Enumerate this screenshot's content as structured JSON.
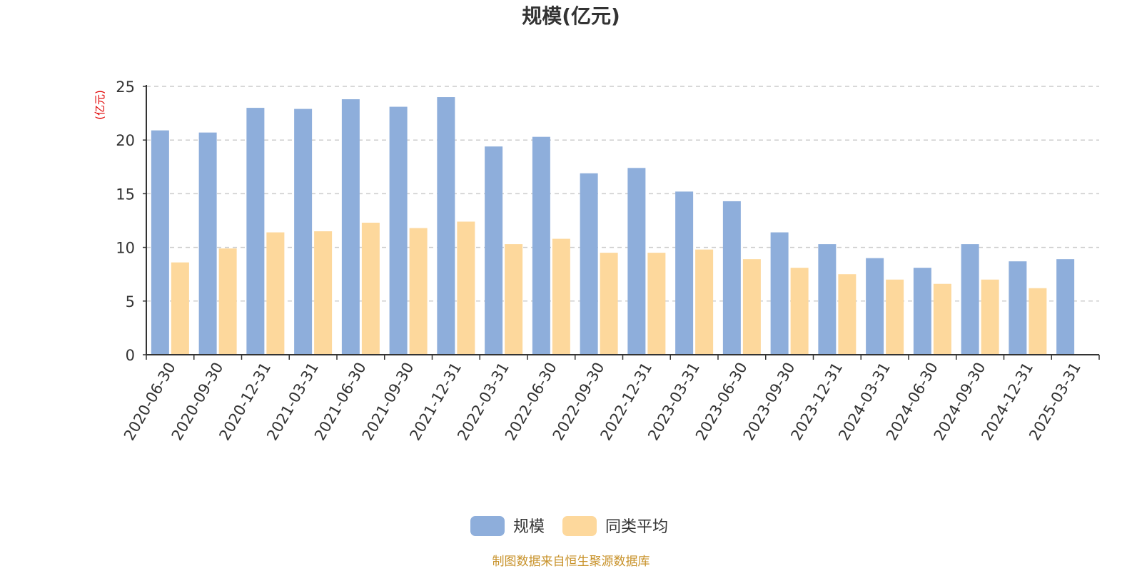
{
  "chart_data": {
    "type": "bar",
    "title": "规模(亿元)",
    "ylabel": "(亿元)",
    "ylim": [
      0,
      25
    ],
    "yticks": [
      "0",
      "5",
      "10",
      "15",
      "20",
      "25"
    ],
    "grid": true,
    "legend_position": "bottom",
    "categories": [
      "2020-06-30",
      "2020-09-30",
      "2020-12-31",
      "2021-03-31",
      "2021-06-30",
      "2021-09-30",
      "2021-12-31",
      "2022-03-31",
      "2022-06-30",
      "2022-09-30",
      "2022-12-31",
      "2023-03-31",
      "2023-06-30",
      "2023-09-30",
      "2023-12-31",
      "2024-03-31",
      "2024-06-30",
      "2024-09-30",
      "2024-12-31",
      "2025-03-31"
    ],
    "series": [
      {
        "name": "规模",
        "color": "#8eaedb",
        "values": [
          20.9,
          20.7,
          23.0,
          22.9,
          23.8,
          23.1,
          24.0,
          19.4,
          20.3,
          16.9,
          17.4,
          15.2,
          14.3,
          11.4,
          10.3,
          9.0,
          8.1,
          10.3,
          8.7,
          8.9
        ]
      },
      {
        "name": "同类平均",
        "color": "#fdd89c",
        "values": [
          8.6,
          9.9,
          11.4,
          11.5,
          12.3,
          11.8,
          12.4,
          10.3,
          10.8,
          9.5,
          9.5,
          9.8,
          8.9,
          8.1,
          7.5,
          7.0,
          6.6,
          7.0,
          6.2,
          null
        ]
      }
    ]
  },
  "source_note": "制图数据来自恒生聚源数据库"
}
